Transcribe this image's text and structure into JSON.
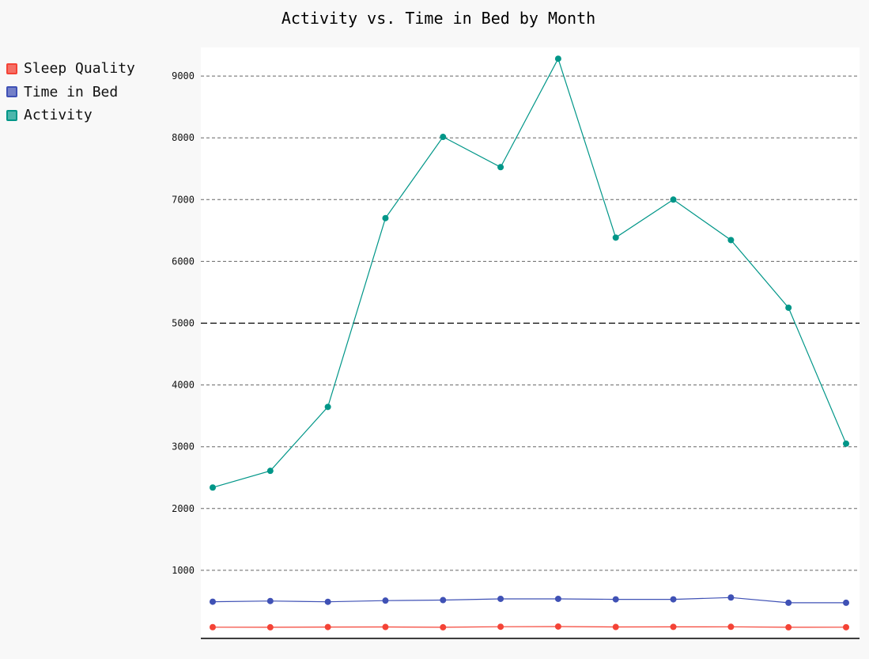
{
  "colors": {
    "background": "#f8f8f8",
    "plot_background": "#ffffff",
    "grid": "#666666",
    "axis": "#000000"
  },
  "chart_data": {
    "type": "line",
    "title": "Activity vs. Time in Bed by Month",
    "xlabel": "",
    "ylabel": "",
    "ylim": [
      0,
      9500
    ],
    "yticks": [
      "1000",
      "2000",
      "3000",
      "4000",
      "5000",
      "6000",
      "7000",
      "8000",
      "9000"
    ],
    "grid": "horizontal dashed",
    "legend_position": "top-left",
    "series": [
      {
        "name": "Sleep Quality",
        "color": "#f44336",
        "swatch_fill": "#f57066",
        "values": [
          80,
          78,
          82,
          83,
          78,
          87,
          90,
          83,
          85,
          86,
          78,
          79
        ]
      },
      {
        "name": "Time in Bed",
        "color": "#3f51b5",
        "swatch_fill": "#7480c8",
        "values": [
          492,
          503,
          490,
          510,
          518,
          538,
          538,
          530,
          530,
          560,
          475,
          475
        ]
      },
      {
        "name": "Activity",
        "color": "#009688",
        "swatch_fill": "#4db6ac",
        "values": [
          2340,
          2610,
          3645,
          6700,
          8015,
          7525,
          9280,
          6385,
          7000,
          6345,
          5250,
          3050
        ]
      }
    ]
  }
}
